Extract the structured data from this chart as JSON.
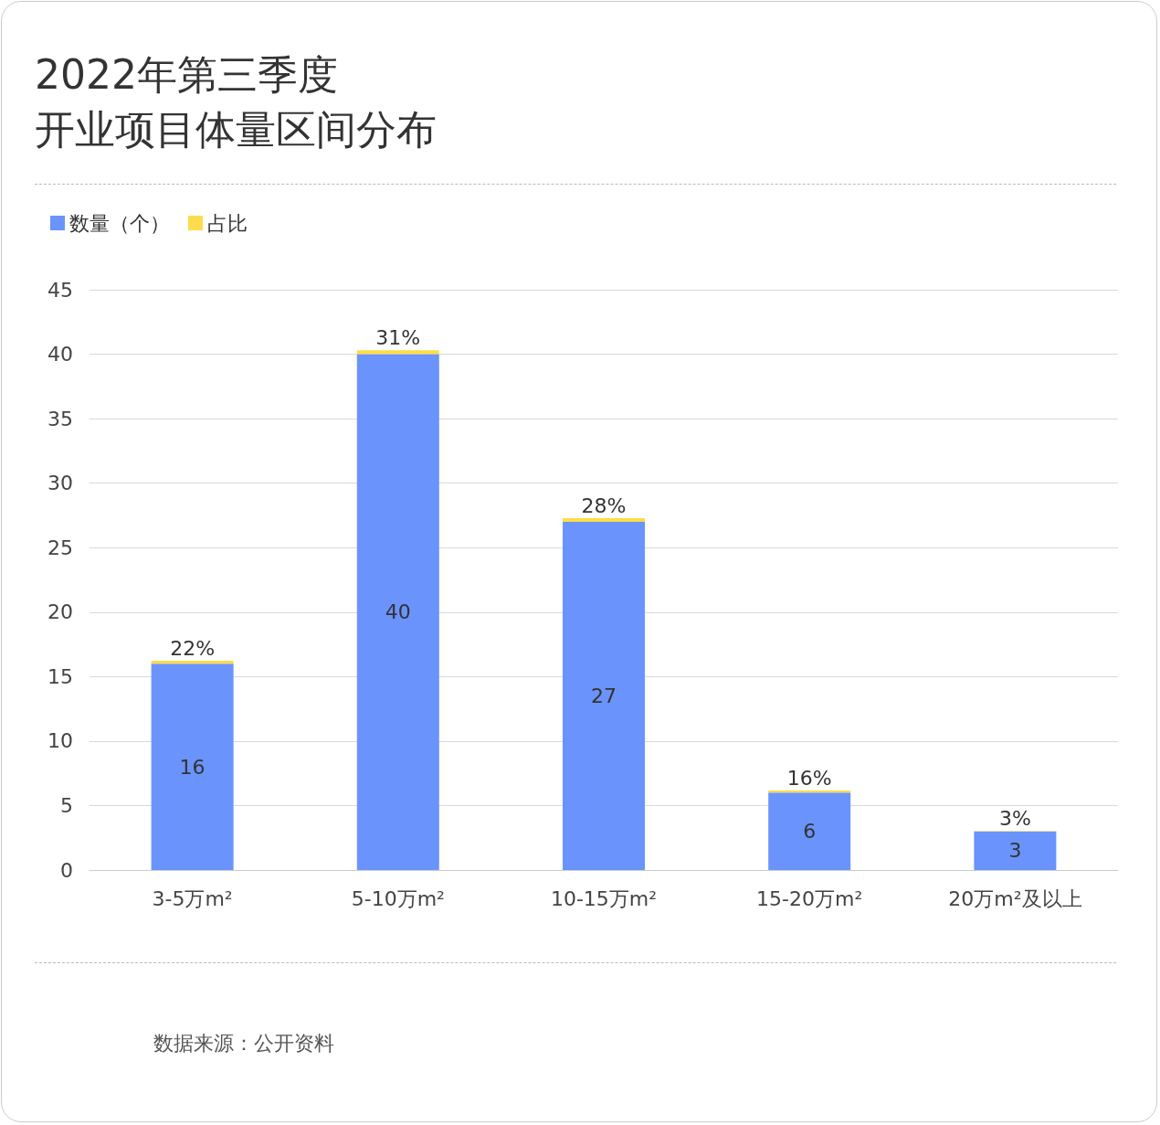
{
  "chart_data": {
    "type": "bar",
    "title": "2022年第三季度",
    "subtitle": "开业项目体量区间分布",
    "categories": [
      "3-5万m²",
      "5-10万m²",
      "10-15万m²",
      "15-20万m²",
      "20万m²及以上"
    ],
    "stacked": true,
    "series": [
      {
        "name": "数量（个）",
        "color": "#6b93fc",
        "values": [
          16,
          40,
          27,
          6,
          3
        ],
        "value_labels": [
          "16",
          "40",
          "27",
          "6",
          "3"
        ]
      },
      {
        "name": "占比",
        "color": "#fcdc4c",
        "values": [
          0.22,
          0.31,
          0.28,
          0.16,
          0.03
        ],
        "value_labels": [
          "22%",
          "31%",
          "28%",
          "16%",
          "3%"
        ]
      }
    ],
    "ylim": [
      0,
      45
    ],
    "yticks": [
      0,
      5,
      10,
      15,
      20,
      25,
      30,
      35,
      40,
      45
    ],
    "grid": "y",
    "legend": "top left",
    "annotations": [
      "数据来源：公开资料"
    ]
  }
}
